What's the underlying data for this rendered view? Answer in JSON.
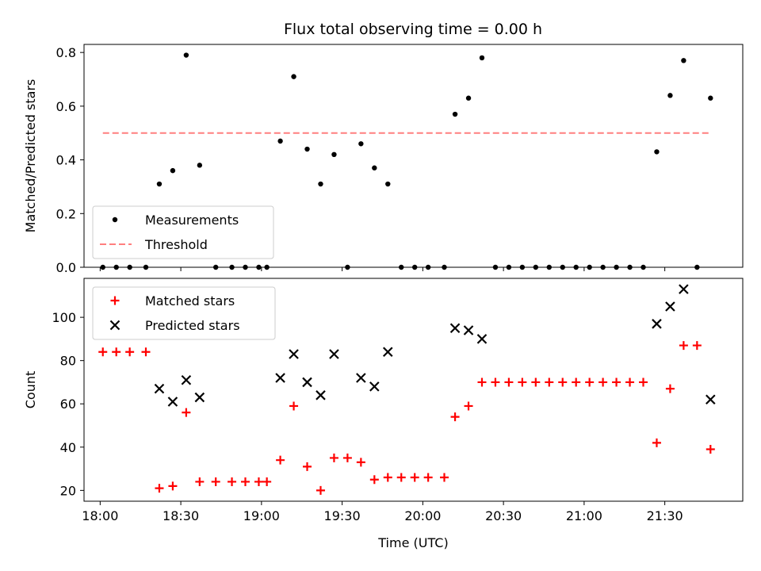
{
  "chart_data": [
    {
      "type": "scatter",
      "title": "Flux total observing time = 0.00 h",
      "xlabel": "",
      "ylabel": "Matched/Predicted stars",
      "x_unit": "time (UTC)",
      "xlim": [
        "17:54",
        "21:59"
      ],
      "ylim": [
        0,
        0.83
      ],
      "x_ticks": [
        "18:00",
        "18:30",
        "19:00",
        "19:30",
        "20:00",
        "20:30",
        "21:00",
        "21:30"
      ],
      "x_tick_labels_shown": false,
      "y_ticks": [
        "0.0",
        "0.2",
        "0.4",
        "0.6",
        "0.8"
      ],
      "legend": {
        "position": "lower-left",
        "entries": [
          "Measurements",
          "Threshold"
        ]
      },
      "grid": false,
      "series": [
        {
          "name": "Measurements",
          "marker": "dot",
          "color": "#000000",
          "points": [
            [
              "18:01",
              0.0
            ],
            [
              "18:06",
              0.0
            ],
            [
              "18:11",
              0.0
            ],
            [
              "18:17",
              0.0
            ],
            [
              "18:22",
              0.31
            ],
            [
              "18:27",
              0.36
            ],
            [
              "18:32",
              0.79
            ],
            [
              "18:37",
              0.38
            ],
            [
              "18:43",
              0.0
            ],
            [
              "18:49",
              0.0
            ],
            [
              "18:54",
              0.0
            ],
            [
              "18:59",
              0.0
            ],
            [
              "19:02",
              0.0
            ],
            [
              "19:07",
              0.47
            ],
            [
              "19:12",
              0.71
            ],
            [
              "19:17",
              0.44
            ],
            [
              "19:22",
              0.31
            ],
            [
              "19:27",
              0.42
            ],
            [
              "19:32",
              0.0
            ],
            [
              "19:37",
              0.46
            ],
            [
              "19:42",
              0.37
            ],
            [
              "19:47",
              0.31
            ],
            [
              "19:52",
              0.0
            ],
            [
              "19:57",
              0.0
            ],
            [
              "20:02",
              0.0
            ],
            [
              "20:08",
              0.0
            ],
            [
              "20:12",
              0.57
            ],
            [
              "20:17",
              0.63
            ],
            [
              "20:22",
              0.78
            ],
            [
              "20:27",
              0.0
            ],
            [
              "20:32",
              0.0
            ],
            [
              "20:37",
              0.0
            ],
            [
              "20:42",
              0.0
            ],
            [
              "20:47",
              0.0
            ],
            [
              "20:52",
              0.0
            ],
            [
              "20:57",
              0.0
            ],
            [
              "21:02",
              0.0
            ],
            [
              "21:07",
              0.0
            ],
            [
              "21:12",
              0.0
            ],
            [
              "21:17",
              0.0
            ],
            [
              "21:22",
              0.0
            ],
            [
              "21:27",
              0.43
            ],
            [
              "21:32",
              0.64
            ],
            [
              "21:37",
              0.77
            ],
            [
              "21:42",
              0.0
            ],
            [
              "21:47",
              0.63
            ]
          ]
        },
        {
          "name": "Threshold",
          "style": "dashed-line",
          "color": "#ff7f7f",
          "points": [
            [
              "18:01",
              0.5
            ],
            [
              "21:47",
              0.5
            ]
          ]
        }
      ]
    },
    {
      "type": "scatter",
      "title": "",
      "xlabel": "Time (UTC)",
      "ylabel": "Count",
      "x_unit": "time (UTC)",
      "xlim": [
        "17:54",
        "21:59"
      ],
      "ylim": [
        15,
        118
      ],
      "x_ticks": [
        "18:00",
        "18:30",
        "19:00",
        "19:30",
        "20:00",
        "20:30",
        "21:00",
        "21:30"
      ],
      "x_tick_labels_shown": true,
      "y_ticks": [
        "20",
        "40",
        "60",
        "80",
        "100"
      ],
      "legend": {
        "position": "top-left",
        "entries": [
          "Matched stars",
          "Predicted stars"
        ]
      },
      "grid": false,
      "series": [
        {
          "name": "Matched stars",
          "marker": "plus",
          "color": "#ff0000",
          "points": [
            [
              "18:01",
              84
            ],
            [
              "18:06",
              84
            ],
            [
              "18:11",
              84
            ],
            [
              "18:17",
              84
            ],
            [
              "18:22",
              21
            ],
            [
              "18:27",
              22
            ],
            [
              "18:32",
              56
            ],
            [
              "18:37",
              24
            ],
            [
              "18:43",
              24
            ],
            [
              "18:49",
              24
            ],
            [
              "18:54",
              24
            ],
            [
              "18:59",
              24
            ],
            [
              "19:02",
              24
            ],
            [
              "19:07",
              34
            ],
            [
              "19:12",
              59
            ],
            [
              "19:17",
              31
            ],
            [
              "19:22",
              20
            ],
            [
              "19:27",
              35
            ],
            [
              "19:32",
              35
            ],
            [
              "19:37",
              33
            ],
            [
              "19:42",
              25
            ],
            [
              "19:47",
              26
            ],
            [
              "19:52",
              26
            ],
            [
              "19:57",
              26
            ],
            [
              "20:02",
              26
            ],
            [
              "20:08",
              26
            ],
            [
              "20:12",
              54
            ],
            [
              "20:17",
              59
            ],
            [
              "20:22",
              70
            ],
            [
              "20:27",
              70
            ],
            [
              "20:32",
              70
            ],
            [
              "20:37",
              70
            ],
            [
              "20:42",
              70
            ],
            [
              "20:47",
              70
            ],
            [
              "20:52",
              70
            ],
            [
              "20:57",
              70
            ],
            [
              "21:02",
              70
            ],
            [
              "21:07",
              70
            ],
            [
              "21:12",
              70
            ],
            [
              "21:17",
              70
            ],
            [
              "21:22",
              70
            ],
            [
              "21:27",
              42
            ],
            [
              "21:32",
              67
            ],
            [
              "21:37",
              87
            ],
            [
              "21:42",
              87
            ],
            [
              "21:47",
              39
            ]
          ]
        },
        {
          "name": "Predicted stars",
          "marker": "x",
          "color": "#000000",
          "points": [
            [
              "18:22",
              67
            ],
            [
              "18:27",
              61
            ],
            [
              "18:32",
              71
            ],
            [
              "18:37",
              63
            ],
            [
              "19:07",
              72
            ],
            [
              "19:12",
              83
            ],
            [
              "19:17",
              70
            ],
            [
              "19:22",
              64
            ],
            [
              "19:27",
              83
            ],
            [
              "19:37",
              72
            ],
            [
              "19:42",
              68
            ],
            [
              "19:47",
              84
            ],
            [
              "20:12",
              95
            ],
            [
              "20:17",
              94
            ],
            [
              "20:22",
              90
            ],
            [
              "21:27",
              97
            ],
            [
              "21:32",
              105
            ],
            [
              "21:37",
              113
            ],
            [
              "21:47",
              62
            ]
          ]
        }
      ]
    }
  ]
}
